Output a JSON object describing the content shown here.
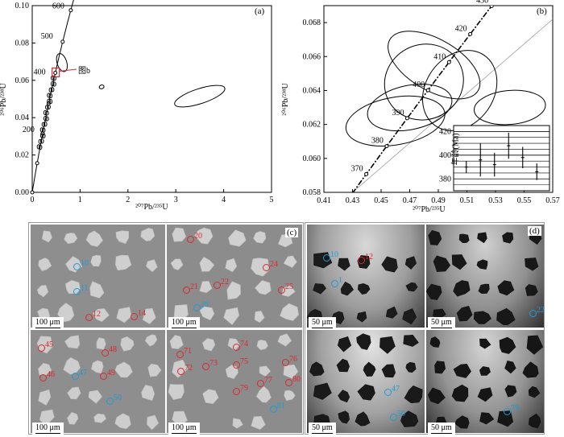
{
  "panel_a": {
    "label": "(a)",
    "xlabel": "²⁰⁷Pb/²³⁵U",
    "ylabel": "²⁰⁶Pb/²³⁸U",
    "x_ticks": [
      "0",
      "1",
      "2",
      "3",
      "4",
      "5"
    ],
    "y_ticks": [
      "0.00",
      "0.02",
      "0.04",
      "0.06",
      "0.08",
      "0.10"
    ],
    "concordia_labels": [
      "600",
      "500",
      "400",
      "200"
    ],
    "callout": "图b",
    "accent": "#e0262b"
  },
  "panel_b": {
    "label": "(b)",
    "xlabel": "²⁰⁷Pb/²³⁵U",
    "ylabel": "²⁰⁶Pb/²³⁸U",
    "x_ticks": [
      "0.41",
      "0.43",
      "0.45",
      "0.47",
      "0.49",
      "0.51",
      "0.53",
      "0.55",
      "0.57"
    ],
    "y_ticks": [
      "0.058",
      "0.060",
      "0.062",
      "0.064",
      "0.066",
      "0.068"
    ],
    "concordia_labels": [
      "430",
      "420",
      "410",
      "400",
      "390",
      "380",
      "370"
    ],
    "inset": {
      "ylabel": "年龄(Ma)",
      "y_ticks": [
        "420",
        "400",
        "380"
      ]
    }
  },
  "chart_data": [
    {
      "type": "scatter",
      "title": "",
      "xlabel": "²⁰⁷Pb/²³⁵U",
      "ylabel": "²⁰⁶Pb/²³⁸U",
      "xlim": [
        0,
        5
      ],
      "ylim": [
        0,
        0.1
      ],
      "concordia_ticks_ma": [
        200,
        400,
        500,
        600
      ],
      "ellipses": [
        {
          "cx": 0.62,
          "cy": 0.0695,
          "rx": 0.1,
          "ry": 0.005
        },
        {
          "cx": 1.45,
          "cy": 0.0565,
          "rx": 0.05,
          "ry": 0.001
        },
        {
          "cx": 3.5,
          "cy": 0.0515,
          "rx": 0.55,
          "ry": 0.004
        }
      ]
    },
    {
      "type": "scatter",
      "title": "",
      "xlabel": "²⁰⁷Pb/²³⁵U",
      "ylabel": "²⁰⁶Pb/²³⁸U",
      "xlim": [
        0.41,
        0.57
      ],
      "ylim": [
        0.058,
        0.069
      ],
      "concordia_ticks_ma": [
        370,
        380,
        390,
        400,
        410,
        420,
        430
      ],
      "ellipses": [
        {
          "cx": 0.48,
          "cy": 0.0645,
          "rx": 0.028,
          "ry": 0.0022
        },
        {
          "cx": 0.487,
          "cy": 0.0655,
          "rx": 0.018,
          "ry": 0.003
        },
        {
          "cx": 0.47,
          "cy": 0.063,
          "rx": 0.03,
          "ry": 0.0013
        },
        {
          "cx": 0.46,
          "cy": 0.0622,
          "rx": 0.035,
          "ry": 0.0014
        },
        {
          "cx": 0.505,
          "cy": 0.064,
          "rx": 0.03,
          "ry": 0.002
        },
        {
          "cx": 0.54,
          "cy": 0.063,
          "rx": 0.025,
          "ry": 0.001
        }
      ]
    },
    {
      "type": "scatter",
      "title": "",
      "ylabel": "年龄(Ma)",
      "ylim": [
        370,
        425
      ],
      "points": [
        {
          "x": 1,
          "y": 390,
          "err": 5
        },
        {
          "x": 2,
          "y": 396,
          "err": 14
        },
        {
          "x": 3,
          "y": 392,
          "err": 10
        },
        {
          "x": 4,
          "y": 408,
          "err": 11
        },
        {
          "x": 5,
          "y": 398,
          "err": 9
        },
        {
          "x": 6,
          "y": 386,
          "err": 7
        }
      ]
    }
  ],
  "panel_c": {
    "label": "(c)",
    "scale": "100 μm",
    "spots": {
      "q1": [
        {
          "t": "10",
          "c": "blue"
        },
        {
          "t": "11",
          "c": "blue"
        },
        {
          "t": "12",
          "c": "red"
        },
        {
          "t": "14",
          "c": "red"
        }
      ],
      "q2": [
        {
          "t": "20",
          "c": "red"
        },
        {
          "t": "24",
          "c": "red"
        },
        {
          "t": "21",
          "c": "red"
        },
        {
          "t": "22",
          "c": "red"
        },
        {
          "t": "25",
          "c": "red"
        },
        {
          "t": "26",
          "c": "blue"
        }
      ],
      "q3": [
        {
          "t": "45",
          "c": "red"
        },
        {
          "t": "48",
          "c": "red"
        },
        {
          "t": "46",
          "c": "red"
        },
        {
          "t": "47",
          "c": "blue"
        },
        {
          "t": "49",
          "c": "red"
        },
        {
          "t": "50",
          "c": "blue"
        }
      ],
      "q4": [
        {
          "t": "71",
          "c": "red"
        },
        {
          "t": "72",
          "c": "red"
        },
        {
          "t": "73",
          "c": "red"
        },
        {
          "t": "74",
          "c": "red"
        },
        {
          "t": "75",
          "c": "red"
        },
        {
          "t": "76",
          "c": "red"
        },
        {
          "t": "77",
          "c": "red"
        },
        {
          "t": "79",
          "c": "red"
        },
        {
          "t": "80",
          "c": "red"
        },
        {
          "t": "81",
          "c": "blue"
        }
      ]
    }
  },
  "panel_d": {
    "label": "(d)",
    "scale": "50 μm",
    "spots": {
      "q1": [
        {
          "t": "10",
          "c": "blue"
        },
        {
          "t": "1",
          "c": "blue"
        },
        {
          "t": "12",
          "c": "red"
        }
      ],
      "q2": [
        {
          "t": "22",
          "c": "blue"
        }
      ],
      "q3": [
        {
          "t": "47",
          "c": "blue"
        },
        {
          "t": "50",
          "c": "blue"
        }
      ],
      "q4": [
        {
          "t": "79",
          "c": "blue"
        }
      ]
    }
  }
}
